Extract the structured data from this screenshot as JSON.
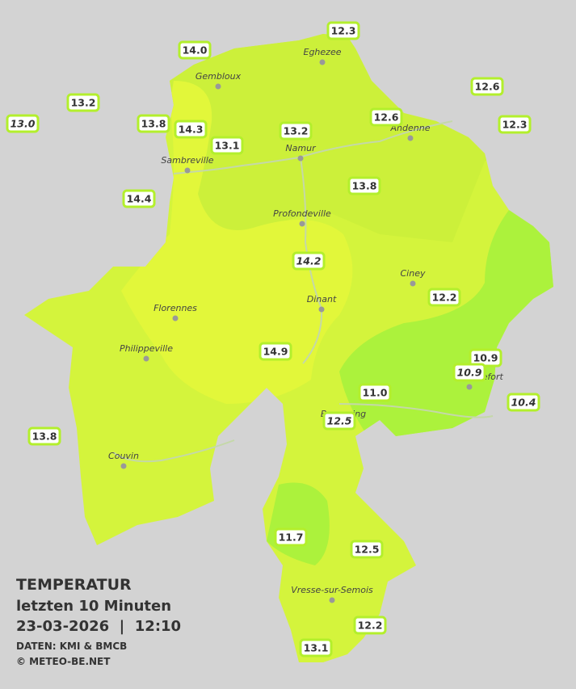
{
  "map": {
    "stations": [
      "12.3",
      "14.0",
      "12.6",
      "13.2",
      "13.0",
      "13.8",
      "14.3",
      "12.6",
      "12.3",
      "13.2",
      "13.1",
      "14.4",
      "13.8",
      "14.2",
      "12.2",
      "14.9",
      "10.9",
      "10.9",
      "11.0",
      "10.4",
      "12.5",
      "13.8",
      "11.7",
      "12.5",
      "12.2",
      "13.1"
    ],
    "places": [
      "Eghezee",
      "Gembloux",
      "Andenne",
      "Namur",
      "Sambreville",
      "Profondeville",
      "Ciney",
      "Dinant",
      "Florennes",
      "Philippeville",
      "Rochefort",
      "Beauraing",
      "Couvin",
      "Vresse-sur-Semois"
    ]
  },
  "legend": {
    "title": "TEMPERATUR",
    "period": "letzten 10 Minuten",
    "timestamp": "23-03-2026  |  12:10",
    "source": "DATEN: KMI & BMCB",
    "copyright": "© METEO-BE.NET"
  }
}
